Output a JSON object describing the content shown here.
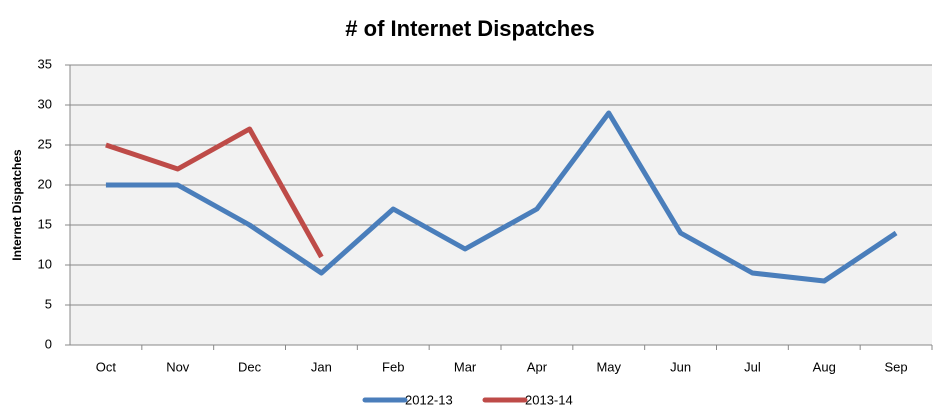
{
  "chart_data": {
    "type": "line",
    "title": "# of Internet Dispatches",
    "y_label": "Internet Dispatches",
    "categories": [
      "Oct",
      "Nov",
      "Dec",
      "Jan",
      "Feb",
      "Mar",
      "Apr",
      "May",
      "Jun",
      "Jul",
      "Aug",
      "Sep"
    ],
    "series": [
      {
        "name": "2012-13",
        "color": "#4a7ebb",
        "values": [
          20,
          20,
          15,
          9,
          17,
          12,
          17,
          29,
          14,
          9,
          8,
          14
        ]
      },
      {
        "name": "2013-14",
        "color": "#be4b48",
        "values": [
          25,
          22,
          27,
          11,
          null,
          null,
          null,
          null,
          null,
          null,
          null,
          null
        ]
      }
    ],
    "ylim": [
      0,
      35
    ],
    "yticks": [
      0,
      5,
      10,
      15,
      20,
      25,
      30,
      35
    ],
    "grid": true,
    "legend": "bottom"
  }
}
